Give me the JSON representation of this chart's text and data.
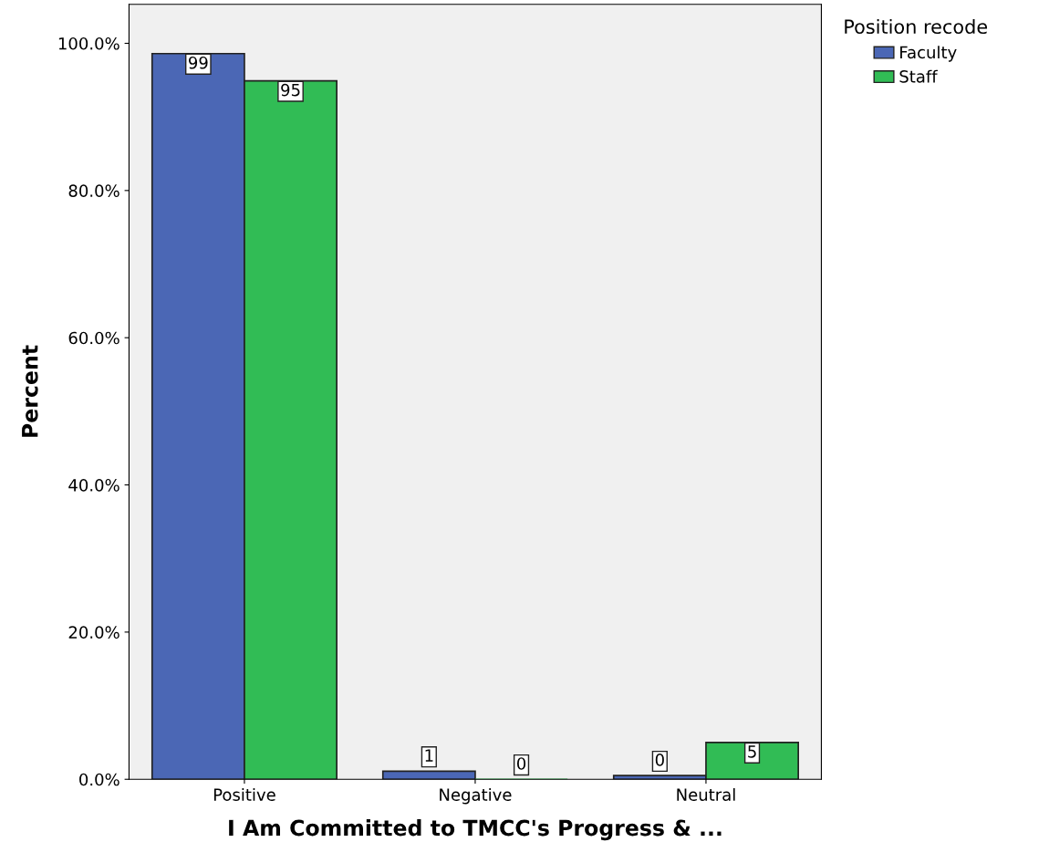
{
  "chart_data": {
    "type": "bar",
    "xlabel": "I Am Committed to TMCC's Progress & ...",
    "ylabel": "Percent",
    "legend_title": "Position recode",
    "categories": [
      "Positive",
      "Negative",
      "Neutral"
    ],
    "series": [
      {
        "name": "Faculty",
        "color": "#4b67b5",
        "values": [
          98.6,
          1.1,
          0.5
        ],
        "value_labels": [
          "99",
          "1",
          "0"
        ]
      },
      {
        "name": "Staff",
        "color": "#31bc55",
        "values": [
          94.9,
          0.0,
          5.0
        ],
        "value_labels": [
          "95",
          "0",
          "5"
        ]
      }
    ],
    "ylim": [
      0,
      105.3
    ],
    "yticks": [
      {
        "value": 0,
        "label": "0.0%"
      },
      {
        "value": 20,
        "label": "20.0%"
      },
      {
        "value": 40,
        "label": "40.0%"
      },
      {
        "value": 60,
        "label": "60.0%"
      },
      {
        "value": 80,
        "label": "80.0%"
      },
      {
        "value": 100,
        "label": "100.0%"
      }
    ],
    "grid": false,
    "legend": "top right"
  }
}
